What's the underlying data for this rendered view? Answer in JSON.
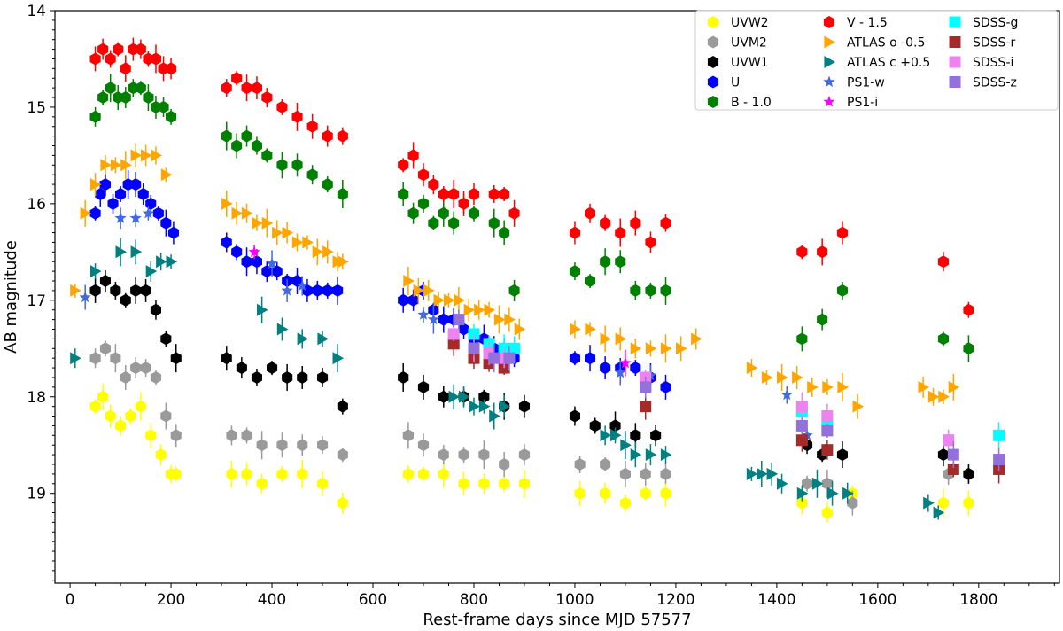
{
  "chart_data": {
    "type": "scatter",
    "title": "",
    "xlabel": "Rest-frame days since MJD 57577",
    "ylabel": "AB magnitude",
    "xlim": [
      -30,
      1960
    ],
    "ylim": [
      19.93,
      14.0
    ],
    "y_inverted": true,
    "x_ticks": [
      0,
      200,
      400,
      600,
      800,
      1000,
      1200,
      1400,
      1600,
      1800
    ],
    "y_ticks": [
      14,
      15,
      16,
      17,
      18,
      19
    ],
    "legend_position": "top-right",
    "series": [
      {
        "name": "UVW2",
        "color": "#ffff00",
        "marker": "hexagon",
        "x": [
          50,
          65,
          80,
          100,
          120,
          140,
          160,
          180,
          200,
          210,
          320,
          350,
          380,
          420,
          460,
          500,
          540,
          670,
          700,
          740,
          780,
          820,
          860,
          900,
          1010,
          1060,
          1100,
          1140,
          1180,
          1450,
          1500,
          1550,
          1730,
          1780
        ],
        "y": [
          18.1,
          18.0,
          18.2,
          18.3,
          18.2,
          18.1,
          18.4,
          18.6,
          18.8,
          18.8,
          18.8,
          18.8,
          18.9,
          18.8,
          18.8,
          18.9,
          19.1,
          18.8,
          18.8,
          18.8,
          18.9,
          18.9,
          18.9,
          18.9,
          19.0,
          19.0,
          19.1,
          19.0,
          19.0,
          19.1,
          19.2,
          19.0,
          19.1,
          19.1
        ]
      },
      {
        "name": "UVM2",
        "color": "#9a9a9a",
        "marker": "hexagon",
        "x": [
          50,
          70,
          90,
          110,
          130,
          150,
          170,
          190,
          210,
          320,
          350,
          380,
          420,
          460,
          500,
          540,
          670,
          700,
          740,
          780,
          820,
          860,
          900,
          1010,
          1060,
          1100,
          1140,
          1180,
          1460,
          1500,
          1550,
          1740,
          1780
        ],
        "y": [
          17.6,
          17.5,
          17.6,
          17.8,
          17.7,
          17.7,
          17.8,
          18.2,
          18.4,
          18.4,
          18.4,
          18.5,
          18.5,
          18.5,
          18.5,
          18.6,
          18.4,
          18.5,
          18.6,
          18.6,
          18.6,
          18.7,
          18.6,
          18.7,
          18.7,
          18.8,
          18.8,
          18.8,
          18.9,
          18.9,
          19.1,
          18.8,
          18.8
        ]
      },
      {
        "name": "UVW1",
        "color": "#000000",
        "marker": "hexagon",
        "x": [
          50,
          70,
          90,
          110,
          130,
          150,
          170,
          190,
          210,
          310,
          340,
          370,
          400,
          430,
          460,
          500,
          540,
          660,
          700,
          740,
          780,
          820,
          860,
          900,
          1000,
          1040,
          1080,
          1120,
          1160,
          1460,
          1490,
          1530,
          1730,
          1780
        ],
        "y": [
          16.9,
          16.8,
          16.9,
          17.0,
          16.9,
          16.9,
          17.1,
          17.4,
          17.6,
          17.6,
          17.7,
          17.8,
          17.7,
          17.8,
          17.8,
          17.8,
          18.1,
          17.8,
          17.9,
          18.0,
          18.0,
          18.0,
          18.1,
          18.1,
          18.2,
          18.3,
          18.3,
          18.4,
          18.4,
          18.5,
          18.6,
          18.6,
          18.6,
          18.8
        ]
      },
      {
        "name": "U",
        "color": "#0000ff",
        "marker": "hexagon",
        "x": [
          50,
          60,
          70,
          85,
          100,
          115,
          130,
          145,
          160,
          175,
          190,
          205,
          310,
          330,
          350,
          370,
          390,
          410,
          430,
          450,
          470,
          490,
          510,
          530,
          660,
          680,
          700,
          720,
          740,
          760,
          780,
          800,
          820,
          840,
          860,
          880,
          1000,
          1030,
          1060,
          1090,
          1120,
          1150,
          1180
        ],
        "y": [
          16.1,
          15.9,
          15.8,
          16.0,
          15.9,
          15.8,
          15.8,
          15.9,
          16.0,
          16.1,
          16.2,
          16.3,
          16.4,
          16.5,
          16.6,
          16.6,
          16.7,
          16.7,
          16.8,
          16.8,
          16.9,
          16.9,
          16.9,
          16.9,
          17.0,
          17.0,
          16.9,
          17.1,
          17.2,
          17.2,
          17.3,
          17.4,
          17.4,
          17.5,
          17.5,
          17.6,
          17.6,
          17.6,
          17.7,
          17.7,
          17.7,
          17.8,
          17.9
        ]
      },
      {
        "name": "B - 1.0",
        "color": "#008000",
        "marker": "hexagon",
        "x": [
          50,
          65,
          80,
          95,
          110,
          125,
          140,
          155,
          170,
          185,
          200,
          310,
          330,
          350,
          370,
          390,
          420,
          450,
          480,
          510,
          540,
          660,
          680,
          700,
          720,
          740,
          760,
          780,
          800,
          840,
          860,
          880,
          1000,
          1030,
          1060,
          1090,
          1120,
          1150,
          1180,
          1450,
          1490,
          1530,
          1730,
          1780
        ],
        "y": [
          15.1,
          14.9,
          14.8,
          14.9,
          14.9,
          14.8,
          14.8,
          14.9,
          15.0,
          15.0,
          15.1,
          15.3,
          15.4,
          15.3,
          15.4,
          15.5,
          15.6,
          15.6,
          15.7,
          15.8,
          15.9,
          15.9,
          16.1,
          16.0,
          16.2,
          16.1,
          16.2,
          16.0,
          16.1,
          16.2,
          16.3,
          16.9,
          16.7,
          16.8,
          16.6,
          16.6,
          16.9,
          16.9,
          16.9,
          17.4,
          17.2,
          16.9,
          17.4,
          17.5
        ]
      },
      {
        "name": "V - 1.5",
        "color": "#ff0000",
        "marker": "hexagon",
        "x": [
          50,
          65,
          80,
          95,
          110,
          125,
          140,
          155,
          170,
          185,
          200,
          310,
          330,
          350,
          370,
          390,
          420,
          450,
          480,
          510,
          540,
          660,
          680,
          700,
          720,
          740,
          760,
          780,
          800,
          840,
          860,
          880,
          1000,
          1030,
          1060,
          1090,
          1120,
          1150,
          1180,
          1450,
          1490,
          1530,
          1730,
          1780
        ],
        "y": [
          14.5,
          14.4,
          14.5,
          14.4,
          14.6,
          14.4,
          14.4,
          14.5,
          14.5,
          14.6,
          14.6,
          14.8,
          14.7,
          14.8,
          14.8,
          14.9,
          15.0,
          15.1,
          15.2,
          15.3,
          15.3,
          15.6,
          15.5,
          15.7,
          15.8,
          15.9,
          15.9,
          16.0,
          15.9,
          15.9,
          15.9,
          16.1,
          16.3,
          16.1,
          16.2,
          16.3,
          16.2,
          16.4,
          16.2,
          16.5,
          16.5,
          16.3,
          16.6,
          17.1
        ]
      },
      {
        "name": "ATLAS o -0.5",
        "color": "#ffa500",
        "marker": "triangle-right",
        "x": [
          10,
          30,
          50,
          70,
          90,
          110,
          130,
          150,
          170,
          190,
          310,
          330,
          350,
          370,
          390,
          410,
          430,
          450,
          470,
          490,
          510,
          530,
          540,
          670,
          690,
          710,
          730,
          750,
          770,
          790,
          810,
          830,
          850,
          870,
          890,
          1000,
          1030,
          1060,
          1090,
          1120,
          1150,
          1180,
          1210,
          1240,
          1350,
          1380,
          1410,
          1440,
          1470,
          1500,
          1530,
          1560,
          1690,
          1710,
          1730,
          1750
        ],
        "y": [
          16.9,
          16.1,
          15.8,
          15.6,
          15.6,
          15.6,
          15.5,
          15.5,
          15.5,
          15.7,
          16.0,
          16.1,
          16.1,
          16.2,
          16.2,
          16.3,
          16.3,
          16.4,
          16.4,
          16.5,
          16.5,
          16.6,
          16.6,
          16.8,
          16.9,
          16.9,
          17.0,
          17.0,
          17.0,
          17.1,
          17.1,
          17.1,
          17.2,
          17.2,
          17.3,
          17.3,
          17.3,
          17.4,
          17.4,
          17.5,
          17.5,
          17.5,
          17.5,
          17.4,
          17.7,
          17.8,
          17.8,
          17.8,
          17.9,
          17.9,
          17.9,
          18.1,
          17.9,
          18.0,
          18.0,
          17.9
        ]
      },
      {
        "name": "ATLAS c +0.5",
        "color": "#008080",
        "marker": "triangle-right",
        "x": [
          10,
          50,
          100,
          130,
          160,
          180,
          200,
          380,
          420,
          460,
          500,
          530,
          760,
          780,
          800,
          820,
          840,
          860,
          1060,
          1080,
          1100,
          1120,
          1150,
          1180,
          1350,
          1370,
          1390,
          1410,
          1450,
          1480,
          1510,
          1540,
          1700,
          1720
        ],
        "y": [
          17.6,
          16.7,
          16.5,
          16.5,
          16.7,
          16.6,
          16.6,
          17.1,
          17.3,
          17.4,
          17.4,
          17.6,
          18.0,
          18.0,
          18.1,
          18.1,
          18.2,
          18.1,
          18.4,
          18.4,
          18.5,
          18.6,
          18.6,
          18.6,
          18.8,
          18.8,
          18.8,
          18.9,
          19.0,
          18.9,
          19.0,
          19.0,
          19.1,
          19.2
        ]
      },
      {
        "name": "PS1-w",
        "color": "#4169e1",
        "marker": "star",
        "x": [
          30,
          100,
          130,
          155,
          400,
          430,
          460,
          700,
          720,
          1090,
          1150,
          1420,
          1460
        ],
        "y": [
          16.97,
          16.15,
          16.15,
          16.1,
          16.62,
          16.9,
          16.85,
          17.15,
          17.2,
          17.75,
          17.78,
          17.98,
          18.4
        ]
      },
      {
        "name": "PS1-i",
        "color": "#ff00ff",
        "marker": "star",
        "x": [
          365,
          1100
        ],
        "y": [
          16.5,
          17.65
        ]
      },
      {
        "name": "SDSS-g",
        "color": "#00ffff",
        "marker": "square",
        "x": [
          800,
          830,
          860,
          880,
          1450,
          1500,
          1740,
          1840
        ],
        "y": [
          17.35,
          17.45,
          17.5,
          17.5,
          18.15,
          18.3,
          18.45,
          18.4
        ]
      },
      {
        "name": "SDSS-r",
        "color": "#a52a2a",
        "marker": "square",
        "x": [
          760,
          800,
          830,
          860,
          1140,
          1450,
          1500,
          1750,
          1840
        ],
        "y": [
          17.45,
          17.6,
          17.65,
          17.7,
          18.1,
          18.45,
          18.55,
          18.75,
          18.75
        ]
      },
      {
        "name": "SDSS-i",
        "color": "#ee82ee",
        "marker": "square",
        "x": [
          760,
          800,
          830,
          860,
          1140,
          1450,
          1500,
          1740
        ],
        "y": [
          17.35,
          17.5,
          17.55,
          17.6,
          17.8,
          18.1,
          18.2,
          18.45
        ]
      },
      {
        "name": "SDSS-z",
        "color": "#9370db",
        "marker": "square",
        "x": [
          770,
          800,
          840,
          870,
          1140,
          1450,
          1500,
          1750,
          1840
        ],
        "y": [
          17.2,
          17.5,
          17.6,
          17.6,
          17.9,
          18.3,
          18.35,
          18.6,
          18.65
        ]
      }
    ]
  }
}
